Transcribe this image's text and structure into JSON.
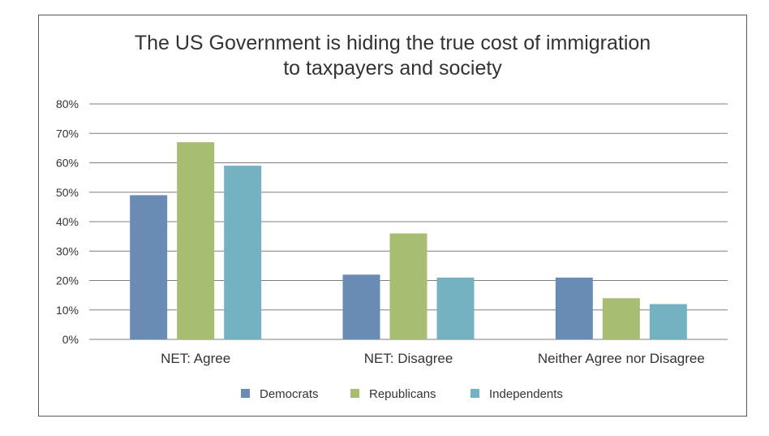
{
  "chart_data": {
    "type": "bar",
    "title": [
      "The US Government is hiding the true cost of immigration",
      "to taxpayers and society"
    ],
    "categories": [
      "NET: Agree",
      "NET: Disagree",
      "Neither Agree nor Disagree"
    ],
    "series": [
      {
        "name": "Democrats",
        "color": "#6a8bb4",
        "values": [
          49,
          22,
          21
        ]
      },
      {
        "name": "Republicans",
        "color": "#a7bd72",
        "values": [
          67,
          36,
          14
        ]
      },
      {
        "name": "Independents",
        "color": "#74b2c2",
        "values": [
          59,
          21,
          12
        ]
      }
    ],
    "yticks": [
      "0%",
      "10%",
      "20%",
      "30%",
      "40%",
      "50%",
      "60%",
      "70%",
      "80%"
    ],
    "ylim": [
      0,
      80
    ],
    "grid": true,
    "legend": "bottom",
    "gridColor": "#7f7f7f"
  }
}
